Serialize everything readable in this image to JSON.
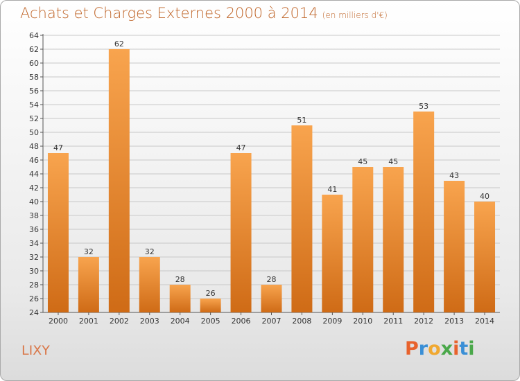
{
  "header": {
    "title": "Achats et Charges Externes 2000 à 2014",
    "subtitle": "(en milliers d'€)"
  },
  "footer": {
    "commune": "LIXY",
    "logo_text": "Proxiti",
    "logo_colors": [
      "#e8622c",
      "#3a8fd6",
      "#f0a830",
      "#4aa84a",
      "#e8622c",
      "#3a8fd6",
      "#4aa84a"
    ]
  },
  "colors": {
    "bar_top": "#f8a44e",
    "bar_bottom": "#cf6b16",
    "grid": "#c8c8c8",
    "title": "#c0662a"
  },
  "chart_data": {
    "type": "bar",
    "title": "Achats et Charges Externes 2000 à 2014",
    "subtitle": "(en milliers d'€)",
    "categories": [
      "2000",
      "2001",
      "2002",
      "2003",
      "2004",
      "2005",
      "2006",
      "2007",
      "2008",
      "2009",
      "2010",
      "2011",
      "2012",
      "2013",
      "2014"
    ],
    "values": [
      47,
      32,
      62,
      32,
      28,
      26,
      47,
      28,
      51,
      41,
      45,
      45,
      53,
      43,
      40
    ],
    "ylim": [
      24,
      64
    ],
    "yticks": [
      24,
      26,
      28,
      30,
      32,
      34,
      36,
      38,
      40,
      42,
      44,
      46,
      48,
      50,
      52,
      54,
      56,
      58,
      60,
      62,
      64
    ],
    "grid": true,
    "data_labels": true
  }
}
